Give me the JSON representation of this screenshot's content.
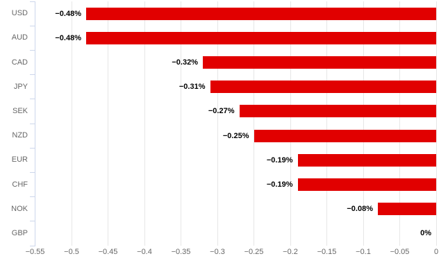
{
  "chart_data": {
    "type": "bar",
    "orientation": "horizontal",
    "title": "",
    "categories": [
      "USD",
      "AUD",
      "CAD",
      "JPY",
      "SEK",
      "NZD",
      "EUR",
      "CHF",
      "NOK",
      "GBP"
    ],
    "values": [
      -0.48,
      -0.48,
      -0.32,
      -0.31,
      -0.27,
      -0.25,
      -0.19,
      -0.19,
      -0.08,
      0
    ],
    "data_labels": [
      "−0.48%",
      "−0.48%",
      "−0.32%",
      "−0.31%",
      "−0.27%",
      "−0.25%",
      "−0.19%",
      "−0.19%",
      "−0.08%",
      "0%"
    ],
    "xlim": [
      -0.55,
      0
    ],
    "xticks": [
      -0.55,
      -0.5,
      -0.45,
      -0.4,
      -0.35,
      -0.3,
      -0.25,
      -0.2,
      -0.15,
      -0.1,
      -0.05,
      0
    ],
    "xtick_labels": [
      "−0.55",
      "−0.5",
      "−0.45",
      "−0.4",
      "−0.35",
      "−0.3",
      "−0.25",
      "−0.2",
      "−0.15",
      "−0.1",
      "−0.05",
      "0"
    ],
    "grid": true,
    "legend": false,
    "colors": {
      "bar": "#e10000",
      "gridline": "#e6e6e6",
      "axis_line": "#ccd6eb",
      "category_label": "#666666",
      "tick_label": "#666666",
      "data_label": "#000000",
      "background": "#ffffff"
    }
  }
}
